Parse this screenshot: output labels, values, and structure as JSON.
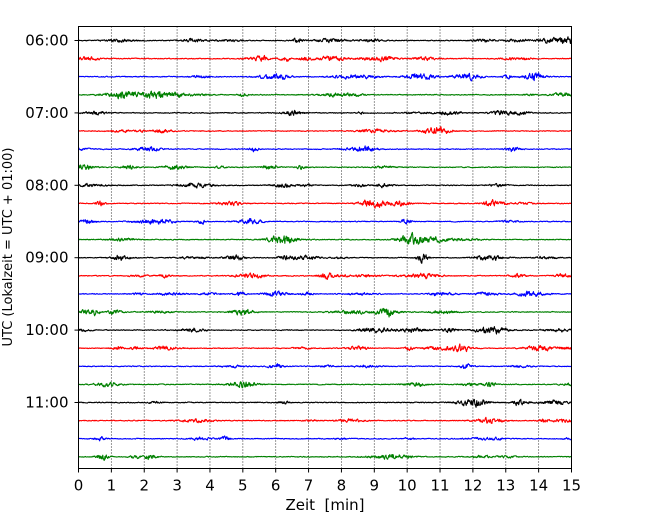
{
  "chart_data": {
    "type": "line",
    "xlabel": "Zeit  [min]",
    "ylabel": "UTC (Lokalzeit = UTC + 01:00)",
    "xlim": [
      0,
      15
    ],
    "x_ticks": [
      0,
      1,
      2,
      3,
      4,
      5,
      6,
      7,
      8,
      9,
      10,
      11,
      12,
      13,
      14,
      15
    ],
    "x_tick_labels": [
      "0",
      "1",
      "2",
      "3",
      "4",
      "5",
      "6",
      "7",
      "8",
      "9",
      "10",
      "11",
      "12",
      "13",
      "14",
      "15"
    ],
    "y_tick_labels": [
      "06:00",
      "07:00",
      "08:00",
      "09:00",
      "10:00",
      "11:00"
    ],
    "grid": "vertical dotted",
    "trace_colors": [
      "#000000",
      "#ff0000",
      "#0000ff",
      "#008000"
    ],
    "traces": [
      {
        "start": "06:00",
        "color": "#000000"
      },
      {
        "start": "06:15",
        "color": "#ff0000"
      },
      {
        "start": "06:30",
        "color": "#0000ff"
      },
      {
        "start": "06:45",
        "color": "#008000"
      },
      {
        "start": "07:00",
        "color": "#000000"
      },
      {
        "start": "07:15",
        "color": "#ff0000"
      },
      {
        "start": "07:30",
        "color": "#0000ff"
      },
      {
        "start": "07:45",
        "color": "#008000"
      },
      {
        "start": "08:00",
        "color": "#000000"
      },
      {
        "start": "08:15",
        "color": "#ff0000"
      },
      {
        "start": "08:30",
        "color": "#0000ff"
      },
      {
        "start": "08:45",
        "color": "#008000"
      },
      {
        "start": "09:00",
        "color": "#000000"
      },
      {
        "start": "09:15",
        "color": "#ff0000"
      },
      {
        "start": "09:30",
        "color": "#0000ff"
      },
      {
        "start": "09:45",
        "color": "#008000"
      },
      {
        "start": "10:00",
        "color": "#000000"
      },
      {
        "start": "10:15",
        "color": "#ff0000"
      },
      {
        "start": "10:30",
        "color": "#0000ff"
      },
      {
        "start": "10:45",
        "color": "#008000"
      },
      {
        "start": "11:00",
        "color": "#000000"
      },
      {
        "start": "11:15",
        "color": "#ff0000"
      },
      {
        "start": "11:30",
        "color": "#0000ff"
      },
      {
        "start": "11:45",
        "color": "#008000"
      }
    ]
  }
}
